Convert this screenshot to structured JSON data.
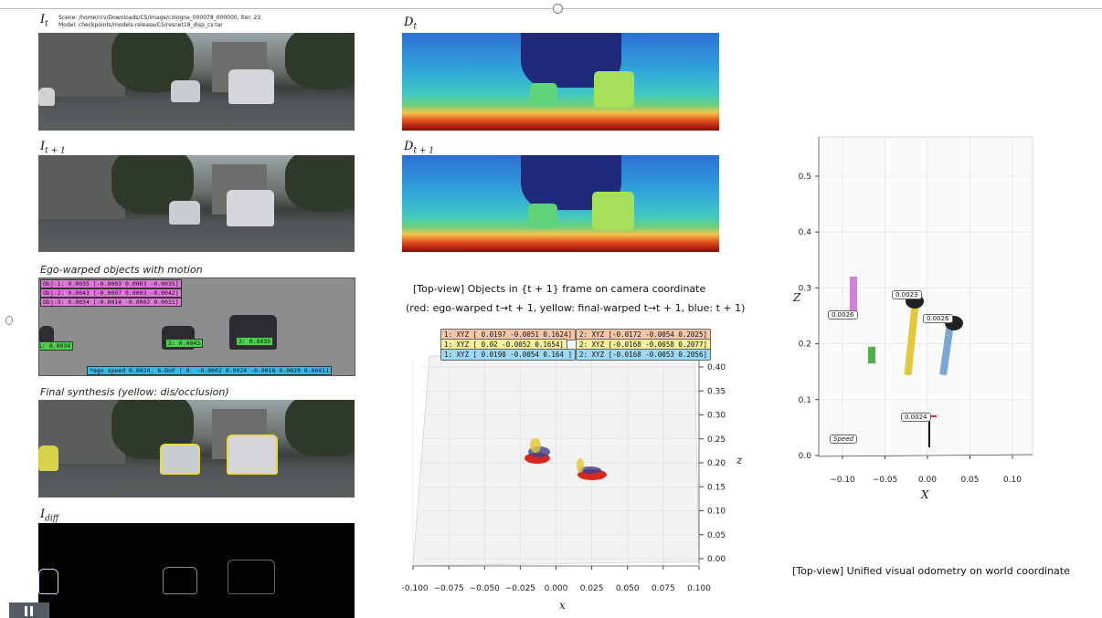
{
  "header": {
    "scene_line": "Scene: /home/rcv/Downloads/CS/image/cologne_000078_000000, Iter: 23",
    "model_line": "Model: checkpoints/models-release/CS/resnet18_disp_cs.tar"
  },
  "labels": {
    "it": "I",
    "it_sub": "t",
    "it1": "I",
    "it1_sub": "t + 1",
    "dt": "D",
    "dt_sub": "t",
    "dt1": "D",
    "dt1_sub": "t + 1",
    "idiff": "I",
    "idiff_sub": "diff",
    "ego_caption": "Ego-warped objects with motion",
    "final_caption": "Final synthesis (yellow: dis/occlusion)"
  },
  "ego_panel": {
    "obj_tags": [
      "Obj-1: 0.0035 [-0.0003  0.0003 -0.0035]",
      "Obj-2: 0.0043 [-0.0007  0.0003 -0.0042]",
      "Obj-3: 0.0034 [-0.0014 -0.0002  0.0031]"
    ],
    "car_tags": [
      "1: 0.0034",
      "2: 0.0043",
      "3: 0.0035"
    ],
    "ego_speed": "*ego speed 0.0024, 6-DoF [ 0.     -0.0002  0.0024 -0.0016  0.0029  0.00011"
  },
  "topview": {
    "title": "[Top-view] Objects in {t + 1} frame on camera coordinate",
    "subtitle": "(red: ego-warped t→t + 1, yellow: final-warped t→t + 1, blue: t + 1)",
    "boxes_left": [
      {
        "text": "1: XYZ [ 0.0197 -0.0051  0.1624]",
        "color": "#f5c6a8"
      },
      {
        "text": "1: XYZ [ 0.02   -0.0052  0.1654]",
        "color": "#f7ef9c"
      },
      {
        "text": "1: XYZ [ 0.0198 -0.0054  0.164 ]",
        "color": "#9fd8f3"
      }
    ],
    "boxes_right": [
      {
        "text": "2: XYZ [-0.0172 -0.0054  0.2025]",
        "color": "#f5c6a8"
      },
      {
        "text": "2: XYZ [-0.0168 -0.0058  0.2077]",
        "color": "#f7ef9c"
      },
      {
        "text": "2: XYZ [-0.0168 -0.0053  0.2056]",
        "color": "#9fd8f3"
      }
    ],
    "x_ticks": [
      "−0.100",
      "−0.075",
      "−0.050",
      "−0.025",
      "0.000",
      "0.025",
      "0.050",
      "0.075",
      "0.100"
    ],
    "z_ticks": [
      "0.40",
      "0.35",
      "0.30",
      "0.25",
      "0.20",
      "0.15",
      "0.10",
      "0.05",
      "0.00"
    ],
    "xlabel": "x",
    "zlabel": "z"
  },
  "odometry": {
    "caption": "[Top-view] Unified visual odometry on world coordinate",
    "x_ticks": [
      "−0.10",
      "−0.05",
      "0.00",
      "0.05",
      "0.10"
    ],
    "z_ticks": [
      "0.5",
      "0.4",
      "0.3",
      "0.2",
      "0.1",
      "0.0"
    ],
    "xlabel": "X",
    "zlabel": "Z",
    "labels": [
      "0.0026",
      "0.0023",
      "0.0026",
      "0.0024"
    ],
    "speed_label": "Speed"
  }
}
